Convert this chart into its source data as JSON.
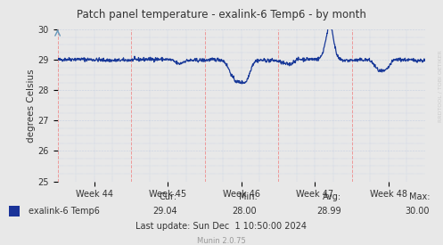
{
  "title": "Patch panel temperature - exalink-6 Temp6 - by month",
  "ylabel": "degrees Celsius",
  "ylim": [
    25,
    30
  ],
  "yticks": [
    25,
    26,
    27,
    28,
    29,
    30
  ],
  "bg_color": "#e8e8e8",
  "plot_bg_color": "#e8e8e8",
  "red_grid_color": "#ee9999",
  "blue_dot_grid_color": "#aabbdd",
  "line_color": "#1a3a99",
  "x_labels": [
    "Week 44",
    "Week 45",
    "Week 46",
    "Week 47",
    "Week 48"
  ],
  "legend_label": "exalink-6 Temp6",
  "legend_box_color": "#1a3399",
  "cur": "29.04",
  "min": "28.00",
  "avg": "28.99",
  "max": "30.00",
  "last_update": "Last update: Sun Dec  1 10:50:00 2024",
  "munin_version": "Munin 2.0.75",
  "watermark": "RRDTOOL / TOBI OETIKER",
  "font_color": "#333333",
  "munin_color": "#999999"
}
